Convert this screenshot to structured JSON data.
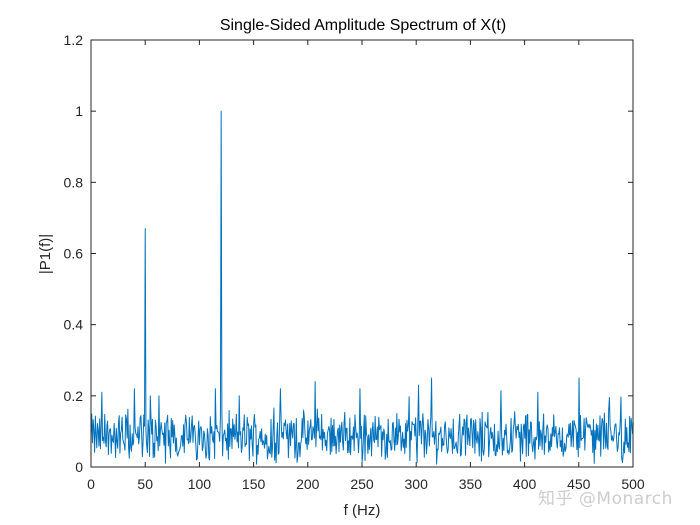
{
  "chart_data": {
    "type": "line",
    "title": "Single-Sided Amplitude Spectrum of X(t)",
    "xlabel": "f (Hz)",
    "ylabel": "|P1(f)|",
    "xlim": [
      0,
      500
    ],
    "ylim": [
      0,
      1.2
    ],
    "xticks": [
      0,
      50,
      100,
      150,
      200,
      250,
      300,
      350,
      400,
      450,
      500
    ],
    "xtick_labels": [
      "0",
      "50",
      "100",
      "150",
      "200",
      "250",
      "300",
      "350",
      "400",
      "450",
      "500"
    ],
    "yticks": [
      0,
      0.2,
      0.4,
      0.6,
      0.8,
      1.0,
      1.2
    ],
    "ytick_labels": [
      "0",
      "0.2",
      "0.4",
      "0.6",
      "0.8",
      "1",
      "1.2"
    ],
    "grid": false,
    "box": true,
    "series": [
      {
        "color": "#0072BD",
        "x_step": 0.667,
        "noise_mean": 0.085,
        "noise_max": 0.25,
        "peaks": [
          {
            "x": 50,
            "y": 0.67
          },
          {
            "x": 120,
            "y": 1.0
          }
        ],
        "notable_points": [
          {
            "x": 10,
            "y": 0.21
          },
          {
            "x": 40,
            "y": 0.22
          },
          {
            "x": 55,
            "y": 0.2
          },
          {
            "x": 63,
            "y": 0.2
          },
          {
            "x": 115,
            "y": 0.22
          },
          {
            "x": 137,
            "y": 0.2
          },
          {
            "x": 175,
            "y": 0.22
          },
          {
            "x": 207,
            "y": 0.24
          },
          {
            "x": 248,
            "y": 0.22
          },
          {
            "x": 302,
            "y": 0.23
          },
          {
            "x": 314,
            "y": 0.25
          },
          {
            "x": 412,
            "y": 0.21
          },
          {
            "x": 450,
            "y": 0.25
          }
        ]
      }
    ]
  },
  "watermark": {
    "text": "知乎 @Monarch"
  }
}
